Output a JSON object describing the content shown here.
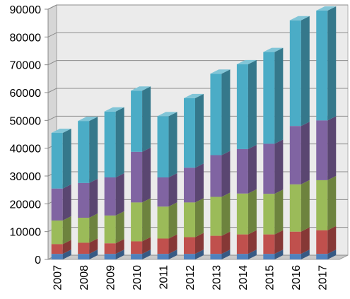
{
  "chart_data": {
    "type": "bar",
    "stacked": true,
    "three_d": true,
    "categories": [
      "2007",
      "2008",
      "2009",
      "2010",
      "2011",
      "2012",
      "2013",
      "2014",
      "2015",
      "2016",
      "2017"
    ],
    "series": [
      {
        "color": "#4f81bd",
        "values": [
          2000,
          2000,
          2000,
          2000,
          2000,
          2000,
          2000,
          2000,
          2000,
          2000,
          2000
        ]
      },
      {
        "color": "#c0504d",
        "values": [
          3500,
          4000,
          3800,
          4500,
          5500,
          6000,
          6500,
          7000,
          7000,
          8000,
          8500
        ]
      },
      {
        "color": "#9bbb59",
        "values": [
          8500,
          9000,
          10000,
          14000,
          11500,
          12500,
          14000,
          14700,
          14600,
          17000,
          18000
        ]
      },
      {
        "color": "#8064a2",
        "values": [
          11500,
          12500,
          13700,
          18200,
          10500,
          12500,
          15000,
          16000,
          18000,
          21000,
          21500
        ]
      },
      {
        "color": "#4bacc6",
        "values": [
          20000,
          22300,
          23700,
          22000,
          22000,
          25000,
          29300,
          30500,
          33000,
          38000,
          39500
        ]
      }
    ],
    "ylim": [
      0,
      90000
    ],
    "yticks": [
      "0",
      "10000",
      "20000",
      "30000",
      "40000",
      "50000",
      "60000",
      "70000",
      "80000",
      "90000"
    ],
    "grid": true,
    "legend": "none"
  }
}
